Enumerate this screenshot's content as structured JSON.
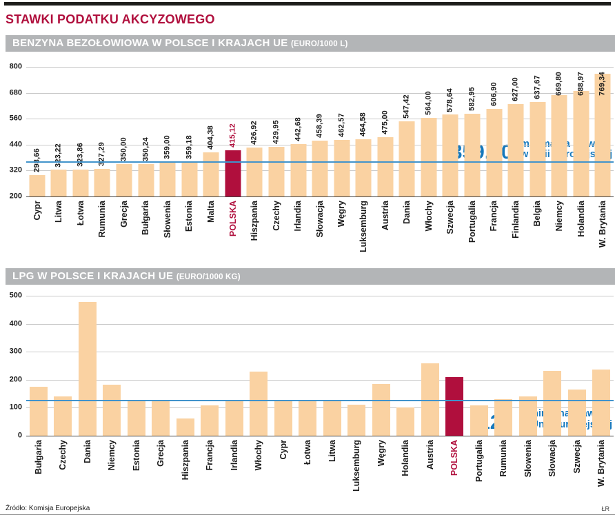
{
  "page": {
    "title": "STAWKI PODATKU AKCYZOWEGO",
    "source": "Źródło: Komisja Europejska",
    "credit": "ŁR"
  },
  "colors": {
    "accent_red": "#b00f3d",
    "bar": "#fad2a2",
    "bar_highlight": "#b00f3d",
    "header_bg": "#b3b5b7",
    "header_text": "#ffffff",
    "ref_blue_line": "#4193cb",
    "ref_blue_text": "#1478bd",
    "grid": "#c9c9c9",
    "axis": "#3f3f3f"
  },
  "chart_data": [
    {
      "type": "bar",
      "title": "BENZYNA BEZOŁOWIOWA W POLSCE I KRAJACH UE",
      "title_unit": "(EURO/1000 L)",
      "categories": [
        "Cypr",
        "Litwa",
        "Łotwa",
        "Rumunia",
        "Grecja",
        "Bułgaria",
        "Słowenia",
        "Estonia",
        "Malta",
        "POLSKA",
        "Hiszpania",
        "Czechy",
        "Irlandia",
        "Słowacja",
        "Węgry",
        "Luksemburg",
        "Austria",
        "Dania",
        "Włochy",
        "Szwecja",
        "Portugalia",
        "Francja",
        "Finlandia",
        "Belgia",
        "Niemcy",
        "Holandia",
        "W. Brytania"
      ],
      "values": [
        298.66,
        323.22,
        323.86,
        327.29,
        350.0,
        350.24,
        359.0,
        359.18,
        404.38,
        415.12,
        426.92,
        429.95,
        442.68,
        458.39,
        462.57,
        464.58,
        475.0,
        547.42,
        564.0,
        578.64,
        582.95,
        606.9,
        627.0,
        637.67,
        669.8,
        688.97,
        769.34
      ],
      "value_labels": [
        "298,66",
        "323,22",
        "323,86",
        "327,29",
        "350,00",
        "350,24",
        "359,00",
        "359,18",
        "404,38",
        "415,12",
        "426,92",
        "429,95",
        "442,68",
        "458,39",
        "462,57",
        "464,58",
        "475,00",
        "547,42",
        "564,00",
        "578,64",
        "582,95",
        "606,90",
        "627,00",
        "637,67",
        "669,80",
        "688,97",
        "769,34"
      ],
      "show_value_labels": true,
      "highlight_index": 9,
      "highlight_category": "POLSKA",
      "ylim": [
        200,
        800
      ],
      "yticks": [
        200,
        320,
        440,
        560,
        680,
        800
      ],
      "grid": true,
      "ref_line": {
        "value": 359,
        "label_value": "359,00",
        "label_line1": "minimalna stawka",
        "label_line2": "w Unii Europejskiej"
      }
    },
    {
      "type": "bar",
      "title": "LPG W POLSCE I KRAJACH UE",
      "title_unit": "(EURO/1000 KG)",
      "categories": [
        "Bułgaria",
        "Czechy",
        "Dania",
        "Niemcy",
        "Estonia",
        "Grecja",
        "Hiszpania",
        "Francja",
        "Irlandia",
        "Włochy",
        "Cypr",
        "Łotwa",
        "Litwa",
        "Luksemburg",
        "Węgry",
        "Holandia",
        "Austria",
        "POLSKA",
        "Portugalia",
        "Rumunia",
        "Słowenia",
        "Słowacja",
        "Szwecja",
        "W. Brytania"
      ],
      "values": [
        175,
        140,
        477,
        182,
        125,
        125,
        62,
        108,
        125,
        228,
        125,
        125,
        125,
        110,
        185,
        100,
        258,
        210,
        108,
        131,
        140,
        232,
        166,
        236
      ],
      "show_value_labels": false,
      "highlight_index": 17,
      "highlight_category": "POLSKA",
      "ylim": [
        0,
        500
      ],
      "yticks": [
        0,
        100,
        200,
        300,
        400,
        500
      ],
      "grid": true,
      "ref_line": {
        "value": 125,
        "label_value": "125",
        "label_line1": "minimalna stawka",
        "label_line2": "w Unii Europejskiej"
      }
    }
  ]
}
